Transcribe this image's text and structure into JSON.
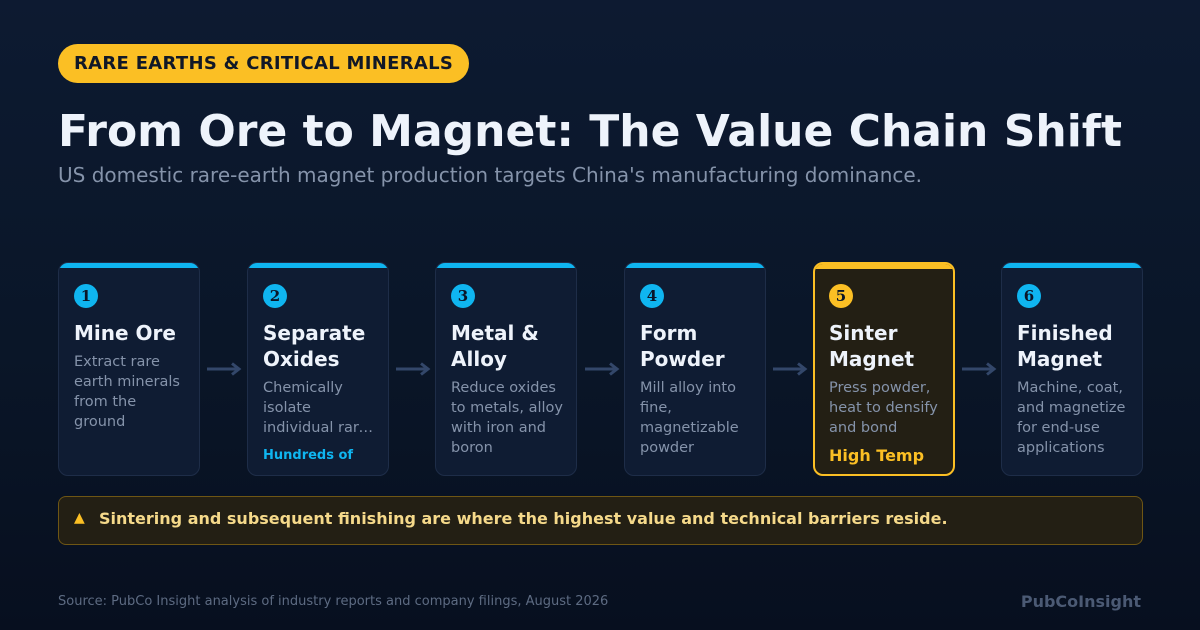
{
  "header": {
    "tag": "RARE EARTHS & CRITICAL MINERALS",
    "title": "From Ore to Magnet: The Value Chain Shift",
    "subtitle": "US domestic rare-earth magnet production targets China's manufacturing dominance."
  },
  "steps": [
    {
      "number": "1",
      "title": "Mine Ore",
      "description": "Extract rare earth minerals from the ground",
      "note": ""
    },
    {
      "number": "2",
      "title": "Separate Oxides",
      "description": "Chemically isolate individual rare earth oxides",
      "note": "Hundreds of"
    },
    {
      "number": "3",
      "title": "Metal & Alloy",
      "description": "Reduce oxides to metals, alloy with iron and boron",
      "note": ""
    },
    {
      "number": "4",
      "title": "Form Powder",
      "description": "Mill alloy into fine, magnetizable powder",
      "note": ""
    },
    {
      "number": "5",
      "title": "Sinter Magnet",
      "description": "Press powder, heat to densify and bond",
      "note": "High Temp",
      "highlighted": true
    },
    {
      "number": "6",
      "title": "Finished Magnet",
      "description": "Machine, coat, and magnetize for end-use applications",
      "note": ""
    }
  ],
  "callout": {
    "icon": "warning-triangle-icon",
    "text": "Sintering and subsequent finishing are where the highest value and technical barriers reside."
  },
  "footer": {
    "source": "Source: PubCo Insight analysis of industry reports and company filings, August 2026",
    "brand": "PubCoInsight"
  },
  "colors": {
    "background": "#0a1628",
    "accent": "#0fb5f0",
    "highlight": "#fbbf24",
    "card": "#0f1c33",
    "muted_text": "#8593aa"
  }
}
